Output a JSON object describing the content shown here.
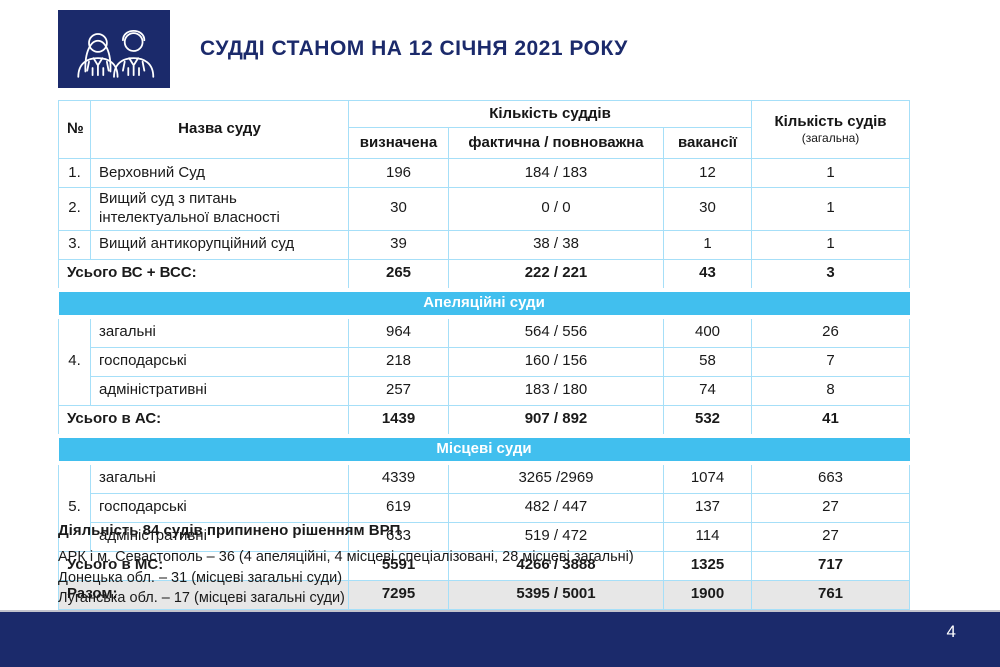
{
  "page": {
    "title": "СУДДІ СТАНОМ НА 12 СІЧНЯ 2021 РОКУ",
    "page_number": "4"
  },
  "colors": {
    "navy": "#1b2a6b",
    "cyan_band": "#41bfee",
    "table_border": "#a6dff8",
    "grand_total_bg": "#e7e7e7"
  },
  "icons": {
    "judges_icon": "two-judges-outline"
  },
  "table": {
    "header": {
      "no": "№",
      "court_name": "Назва суду",
      "judges_group": "Кількість суддів",
      "sub_columns": [
        "визначена",
        "фактична / повноважна",
        "вакансії"
      ],
      "courts_count_line1": "Кількість судів",
      "courts_count_line2": "(загальна)"
    },
    "rows": [
      {
        "type": "data",
        "no": "1.",
        "name": "Верховний Суд",
        "determined": "196",
        "actual": "184 / 183",
        "vacancies": "12",
        "courts": "1"
      },
      {
        "type": "data",
        "no": "2.",
        "name": "Вищий суд з питань інтелектуальної власності",
        "determined": "30",
        "actual": "0 / 0",
        "vacancies": "30",
        "courts": "1"
      },
      {
        "type": "data",
        "no": "3.",
        "name": "Вищий антикорупційний суд",
        "determined": "39",
        "actual": "38 / 38",
        "vacancies": "1",
        "courts": "1"
      },
      {
        "type": "total",
        "label": "Усього ВС + ВСС:",
        "determined": "265",
        "actual": "222 / 221",
        "vacancies": "43",
        "courts": "3"
      },
      {
        "type": "band",
        "label": "Апеляційні суди"
      },
      {
        "type": "group",
        "no": "4.",
        "span": 3,
        "name": "загальні",
        "determined": "964",
        "actual": "564 / 556",
        "vacancies": "400",
        "courts": "26"
      },
      {
        "type": "group-cont",
        "name": "господарські",
        "determined": "218",
        "actual": "160 / 156",
        "vacancies": "58",
        "courts": "7"
      },
      {
        "type": "group-cont",
        "name": "адміністративні",
        "determined": "257",
        "actual": "183 / 180",
        "vacancies": "74",
        "courts": "8"
      },
      {
        "type": "total",
        "label": "Усього в АС:",
        "determined": "1439",
        "actual": "907 / 892",
        "vacancies": "532",
        "courts": "41"
      },
      {
        "type": "band",
        "label": "Місцеві суди"
      },
      {
        "type": "group",
        "no": "5.",
        "span": 3,
        "name": "загальні",
        "determined": "4339",
        "actual": "3265 /2969",
        "vacancies": "1074",
        "courts": "663"
      },
      {
        "type": "group-cont",
        "name": "господарські",
        "determined": "619",
        "actual": "482 / 447",
        "vacancies": "137",
        "courts": "27"
      },
      {
        "type": "group-cont",
        "name": "адміністративні",
        "determined": "633",
        "actual": "519 / 472",
        "vacancies": "114",
        "courts": "27"
      },
      {
        "type": "total",
        "label": "Усього в МС:",
        "determined": "5591",
        "actual": "4266 / 3888",
        "vacancies": "1325",
        "courts": "717"
      },
      {
        "type": "grand",
        "label": "Разом:",
        "determined": "7295",
        "actual": "5395 / 5001",
        "vacancies": "1900",
        "courts": "761"
      }
    ]
  },
  "footnote": {
    "title": "Діяльність 84 судів припинено рішенням ВРП",
    "lines": [
      "АРК  і м. Севастополь – 36 (4 апеляційні, 4 місцеві спеціалізовані, 28 місцеві загальні)",
      "Донецька обл. – 31 (місцеві загальні суди)",
      "Луганська обл. – 17 (місцеві загальні суди)"
    ]
  }
}
